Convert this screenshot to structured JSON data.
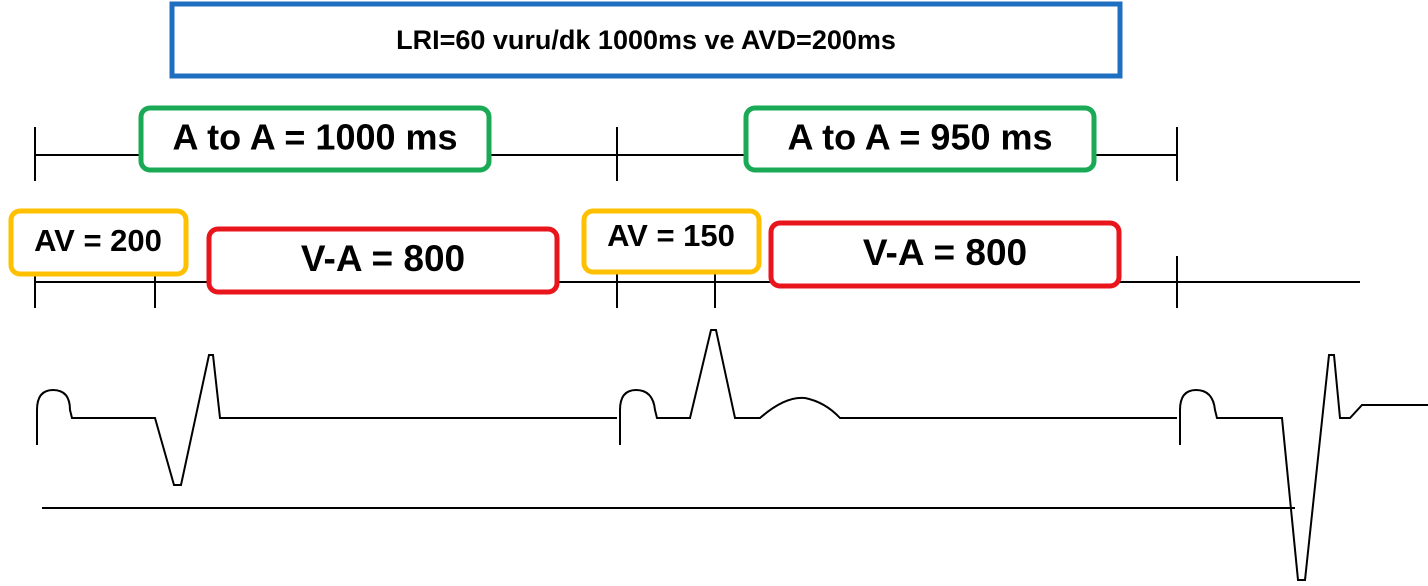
{
  "header": {
    "title": "LRI=60 vuru/dk 1000ms ve AVD=200ms"
  },
  "intervals": [
    {
      "label": "A to A = 1000 ms"
    },
    {
      "label": "A to A = 950 ms"
    },
    {
      "label": "AV = 200"
    },
    {
      "label": "V-A = 800"
    },
    {
      "label": "AV = 150"
    },
    {
      "label": "V-A = 800"
    }
  ]
}
